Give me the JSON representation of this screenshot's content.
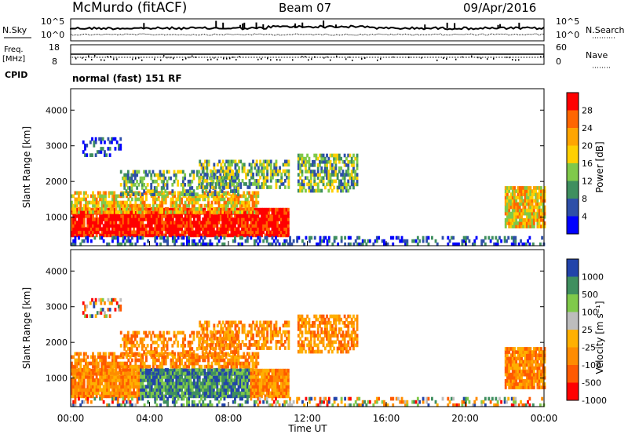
{
  "header": {
    "station": "McMurdo (fitACF)",
    "beam": "Beam 07",
    "date": "09/Apr/2016"
  },
  "noise_panel": {
    "left_label": "N.Sky",
    "right_label": "N.Search",
    "left_ticks": [
      "10^5",
      "10^0"
    ],
    "right_ticks": [
      "10^5",
      "10^0"
    ]
  },
  "freq_panel": {
    "left_label": "Freq.",
    "left_unit": "[MHz]",
    "left_ticks": [
      "18",
      "8"
    ],
    "right_label": "Nave",
    "right_ticks": [
      "60",
      "0"
    ]
  },
  "cpid": {
    "label": "CPID",
    "value": "normal (fast) 151 RF"
  },
  "chart_data": [
    {
      "type": "heatmap",
      "name": "power",
      "ylabel": "Slant Range [km]",
      "ylim": [
        200,
        4600
      ],
      "yticks": [
        "1000",
        "2000",
        "3000",
        "4000"
      ],
      "colorbar": {
        "label": "Power [dB]",
        "ticks": [
          "28",
          "24",
          "20",
          "16",
          "12",
          "8",
          "4"
        ],
        "colors": [
          "#ff0000",
          "#ff6600",
          "#ffa500",
          "#ffd000",
          "#7fc94a",
          "#3f8f5f",
          "#2e4fa8",
          "#0000ff"
        ]
      }
    },
    {
      "type": "heatmap",
      "name": "velocity",
      "ylabel": "Slant Range [km]",
      "ylim": [
        200,
        4600
      ],
      "yticks": [
        "1000",
        "2000",
        "3000",
        "4000"
      ],
      "xlabel": "Time UT",
      "xticks": [
        "00:00",
        "04:00",
        "08:00",
        "12:00",
        "16:00",
        "20:00",
        "00:00"
      ],
      "colorbar": {
        "label": "Velocity [m s⁻¹]",
        "ticks": [
          "1000",
          "500",
          "100",
          "25",
          "-25",
          "-100",
          "-500",
          "-1000"
        ],
        "colors": [
          "#2244aa",
          "#3f8f5f",
          "#7fc94a",
          "#bdbdbd",
          "#ffb000",
          "#ff8c00",
          "#ff5a00",
          "#ff0000"
        ]
      }
    }
  ]
}
